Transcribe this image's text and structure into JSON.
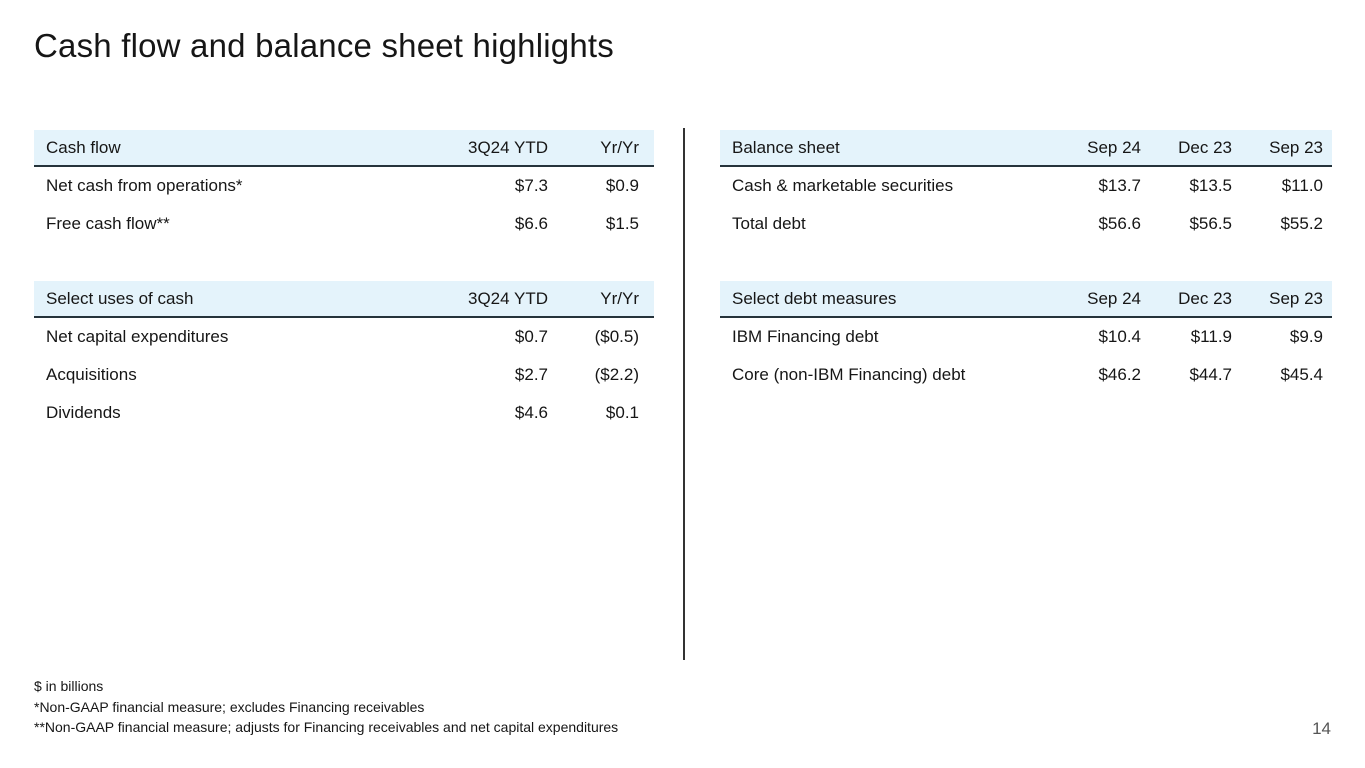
{
  "slide": {
    "title": "Cash flow and balance sheet highlights",
    "page_number": "14",
    "footnotes": [
      "$ in billions",
      "*Non-GAAP financial measure; excludes Financing receivables",
      "**Non-GAAP financial measure; adjusts for Financing receivables and net capital expenditures"
    ]
  },
  "colors": {
    "header_band": "#e4f3fb",
    "header_rule": "#25333b",
    "text": "#161616",
    "divider": "#333333",
    "page_number": "#555555"
  },
  "tables": {
    "cash_flow": {
      "title": "Cash flow",
      "columns": [
        "3Q24 YTD",
        "Yr/Yr"
      ],
      "rows": [
        {
          "label": "Net cash from operations*",
          "values": [
            "$7.3",
            "$0.9"
          ]
        },
        {
          "label": "Free cash flow**",
          "values": [
            "$6.6",
            "$1.5"
          ]
        }
      ]
    },
    "select_uses_of_cash": {
      "title": "Select uses of cash",
      "columns": [
        "3Q24 YTD",
        "Yr/Yr"
      ],
      "rows": [
        {
          "label": "Net capital expenditures",
          "values": [
            "$0.7",
            "($0.5)"
          ]
        },
        {
          "label": "Acquisitions",
          "values": [
            "$2.7",
            "($2.2)"
          ]
        },
        {
          "label": "Dividends",
          "values": [
            "$4.6",
            "$0.1"
          ]
        }
      ]
    },
    "balance_sheet": {
      "title": "Balance sheet",
      "columns": [
        "Sep 24",
        "Dec 23",
        "Sep 23"
      ],
      "rows": [
        {
          "label": "Cash & marketable securities",
          "values": [
            "$13.7",
            "$13.5",
            "$11.0"
          ]
        },
        {
          "label": "Total debt",
          "values": [
            "$56.6",
            "$56.5",
            "$55.2"
          ]
        }
      ]
    },
    "select_debt_measures": {
      "title": "Select debt measures",
      "columns": [
        "Sep 24",
        "Dec 23",
        "Sep 23"
      ],
      "rows": [
        {
          "label": "IBM Financing debt",
          "values": [
            "$10.4",
            "$11.9",
            "$9.9"
          ]
        },
        {
          "label": "Core (non-IBM Financing) debt",
          "values": [
            "$46.2",
            "$44.7",
            "$45.4"
          ]
        }
      ]
    }
  }
}
